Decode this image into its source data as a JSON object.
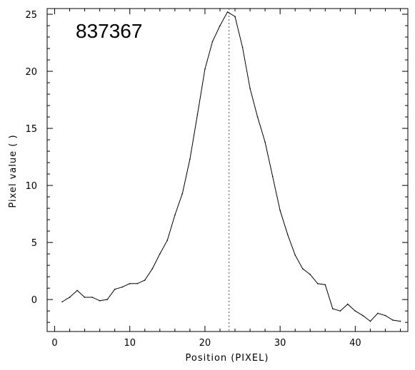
{
  "chart_data": {
    "type": "line",
    "title": "837367",
    "xlabel": "Position (PIXEL)",
    "ylabel": "Pixel value ( )",
    "xlim": [
      -1,
      47
    ],
    "ylim": [
      -2.8,
      25.5
    ],
    "xticks": [
      0,
      10,
      20,
      30,
      40
    ],
    "yticks": [
      0,
      5,
      10,
      15,
      20,
      25
    ],
    "grid": false,
    "reference_line": {
      "x": 23.2,
      "style": "dotted"
    },
    "series": [
      {
        "x": [
          1,
          2,
          3,
          4,
          5,
          6,
          7,
          8,
          9,
          10,
          11,
          12,
          13,
          14,
          15,
          16,
          17,
          18,
          19,
          20,
          21,
          22,
          23,
          24,
          25,
          26,
          27,
          28,
          29,
          30,
          31,
          32,
          33,
          34,
          35,
          36,
          37,
          38,
          39,
          40,
          41,
          42,
          43,
          44,
          45,
          46
        ],
        "y": [
          -0.2,
          0.2,
          0.8,
          0.2,
          0.2,
          -0.1,
          0.0,
          0.9,
          1.1,
          1.4,
          1.4,
          1.7,
          2.7,
          4.0,
          5.2,
          7.4,
          9.3,
          12.3,
          16.2,
          20.2,
          22.6,
          24.0,
          25.2,
          24.8,
          22.1,
          18.5,
          16.0,
          13.8,
          10.8,
          7.8,
          5.7,
          3.9,
          2.7,
          2.2,
          1.4,
          1.3,
          -0.8,
          -1.0,
          -0.4,
          -1.0,
          -1.4,
          -1.9,
          -1.2,
          -1.4,
          -1.8,
          -1.9
        ]
      }
    ]
  },
  "colors": {
    "line": "#000000",
    "reference_line": "#555555",
    "axes": "#000000"
  }
}
